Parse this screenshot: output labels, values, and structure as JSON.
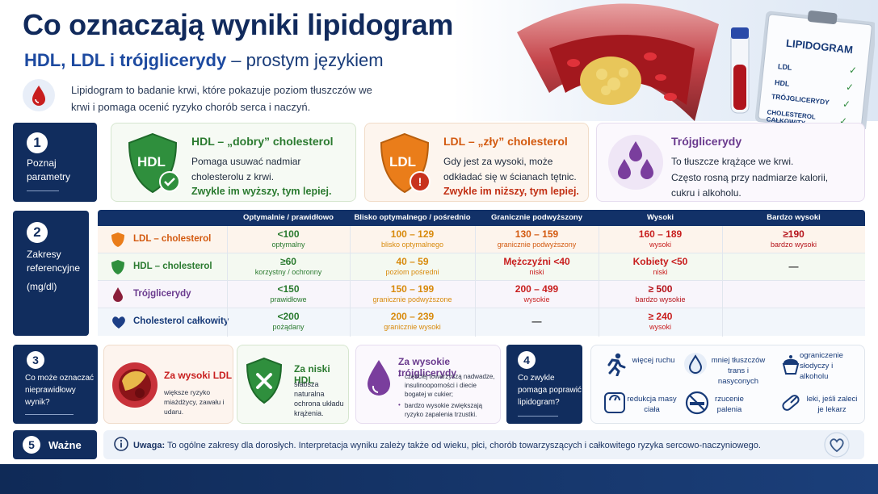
{
  "header": {
    "title": "Co oznaczają wyniki lipidogramu?",
    "subtitle_strong": "HDL, LDL i trójglicerydy",
    "subtitle_rest": " – prostym językiem",
    "intro": "Lipidogram to badanie krwi, które pokazuje poziom tłuszczów we krwi i pomaga ocenić ryzyko chorób serca i naczyń."
  },
  "clipboard": {
    "title": "LIPIDOGRAM",
    "items": [
      "LDL",
      "HDL",
      "TRÓJGLICERYDY",
      "CHOLESTEROL CAŁKOWITY"
    ]
  },
  "section1": {
    "num": "1",
    "label": "Poznaj parametry",
    "hdl": {
      "badge": "HDL",
      "title": "HDL – „dobry” cholesterol",
      "text": "Pomaga usuwać nadmiar cholesterolu z krwi.",
      "strong": "Zwykle im wyższy, tym lepiej."
    },
    "ldl": {
      "badge": "LDL",
      "title": "LDL – „zły” cholesterol",
      "text": "Gdy jest za wysoki, może odkładać się w ścianach tętnic.",
      "strong": "Zwykle im niższy, tym lepiej."
    },
    "tg": {
      "title": "Trójglicerydy",
      "text1": "To tłuszcze krążące we krwi.",
      "text2": "Często rosną przy nadmiarze kalorii, cukru i alkoholu."
    }
  },
  "section2": {
    "num": "2",
    "label": "Zakresy referencyjne",
    "unit": "(mg/dl)",
    "headers": [
      "Optymalnie / prawidłowo",
      "Blisko optymalnego / pośrednio",
      "Granicznie podwyższony",
      "Wysoki",
      "Bardzo wysoki"
    ],
    "rows": [
      {
        "name": "LDL – cholesterol",
        "cells": [
          {
            "v": "<100",
            "s": "optymalny"
          },
          {
            "v": "100 – 129",
            "s": "blisko optymalnego"
          },
          {
            "v": "130 – 159",
            "s": "granicznie podwyższony"
          },
          {
            "v": "160 – 189",
            "s": "wysoki"
          },
          {
            "v": "≥190",
            "s": "bardzo wysoki"
          }
        ]
      },
      {
        "name": "HDL – cholesterol",
        "cells": [
          {
            "v": "≥60",
            "s": "korzystny / ochronny"
          },
          {
            "v": "40 – 59",
            "s": "poziom pośredni"
          },
          {
            "v": "Mężczyźni <40",
            "s": "niski"
          },
          {
            "v": "Kobiety <50",
            "s": "niski"
          },
          {
            "v": "—",
            "s": ""
          }
        ]
      },
      {
        "name": "Trójglicerydy",
        "cells": [
          {
            "v": "<150",
            "s": "prawidłowe"
          },
          {
            "v": "150 – 199",
            "s": "granicznie podwyższone"
          },
          {
            "v": "200 – 499",
            "s": "wysokie"
          },
          {
            "v": "≥ 500",
            "s": "bardzo wysokie"
          },
          {
            "v": "",
            "s": ""
          }
        ]
      },
      {
        "name": "Cholesterol całkowity",
        "cells": [
          {
            "v": "<200",
            "s": "pożądany"
          },
          {
            "v": "200 – 239",
            "s": "granicznie wysoki"
          },
          {
            "v": "—",
            "s": ""
          },
          {
            "v": "≥ 240",
            "s": "wysoki"
          },
          {
            "v": "",
            "s": ""
          }
        ]
      }
    ]
  },
  "section3": {
    "num": "3",
    "label": "Co może oznaczać nieprawidłowy wynik?",
    "high_ldl": {
      "title": "Za wysoki LDL",
      "text": "większe ryzyko miażdżycy, zawału i udaru."
    },
    "low_hdl": {
      "title": "Za niski HDL",
      "text": "słabsza naturalna ochrona układu krążenia."
    },
    "high_tg": {
      "title": "Za wysokie trójglicerydy",
      "b1": "częściej towarzyszą nadwadze, insulinooporności i diecie bogatej w cukier;",
      "b2": "bardzo wysokie zwiększają ryzyko zapalenia trzustki."
    }
  },
  "section4": {
    "num": "4",
    "label": "Co zwykle pomaga poprawić lipidogram?",
    "tips": [
      {
        "icon": "running-icon",
        "text": "więcej ruchu"
      },
      {
        "icon": "drop-icon",
        "text": "mniej tłuszczów trans i nasyconych"
      },
      {
        "icon": "cupcake-icon",
        "text": "ograniczenie słodyczy i alkoholu"
      },
      {
        "icon": "scale-icon",
        "text": "redukcja masy ciała"
      },
      {
        "icon": "no-smoking-icon",
        "text": "rzucenie palenia"
      },
      {
        "icon": "pill-icon",
        "text": "leki, jeśli zaleci je lekarz"
      }
    ]
  },
  "section5": {
    "num": "5",
    "label": "Ważne",
    "note_strong": "Uwaga:",
    "note": " To ogólne zakresy dla dorosłych. Interpretacja wyniku zależy także od wieku, płci, chorób towarzyszących i całkowitego ryzyka sercowo-naczyniowego."
  },
  "colors": {
    "navy": "#112d5e",
    "green": "#2e8b3e",
    "orange": "#e06a14",
    "purple": "#6a3a8e",
    "red": "#c81e1e"
  }
}
